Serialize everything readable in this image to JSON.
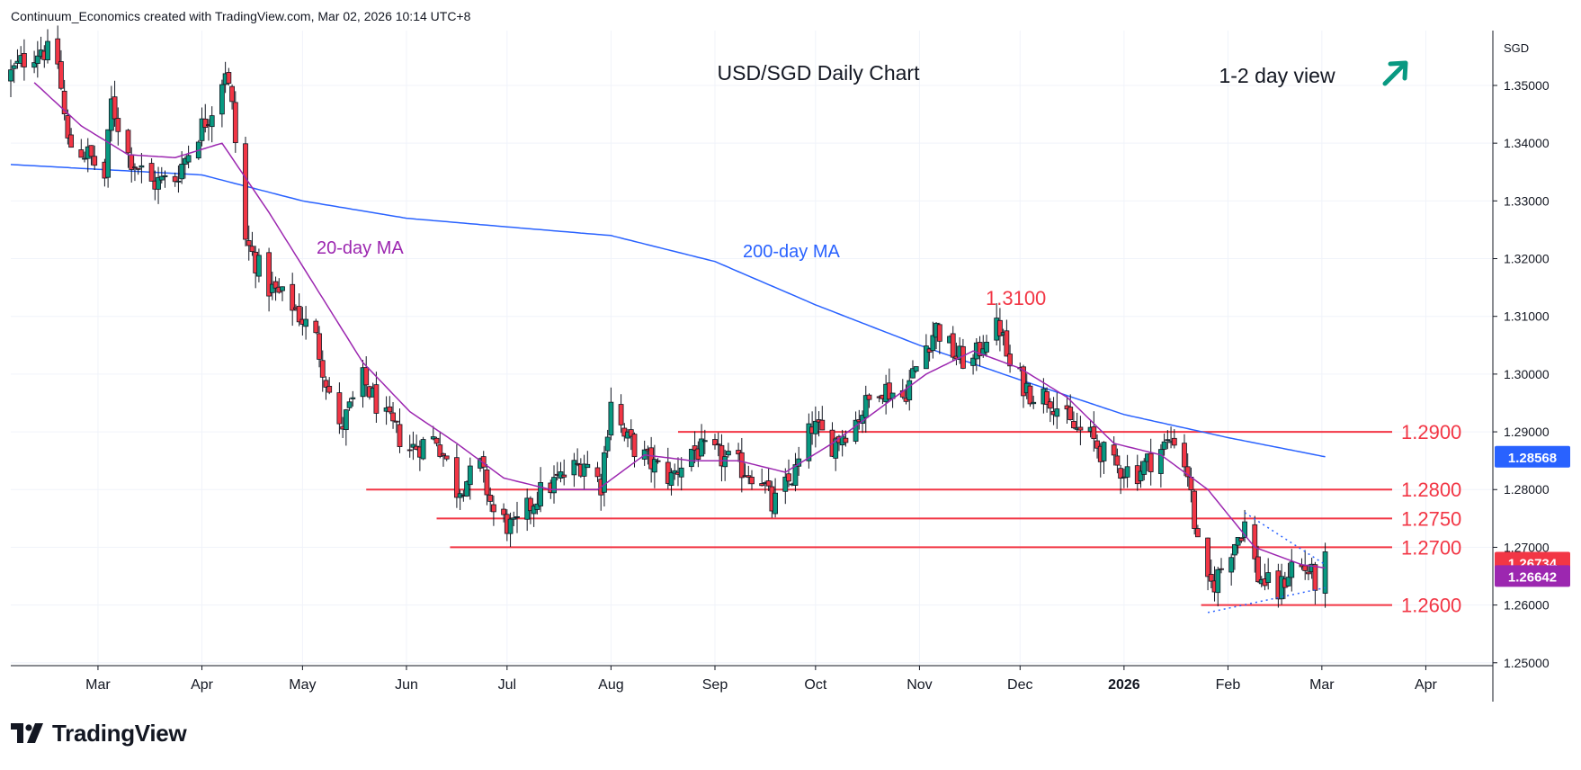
{
  "header": {
    "text": "Continuum_Economics created with TradingView.com, Mar 02, 2026 10:14 UTC+8"
  },
  "brand": {
    "logo_icon": "tradingview-logo-icon",
    "name": "TradingView"
  },
  "colors": {
    "up": "#089981",
    "down": "#f23645",
    "ma20": "#9c27b0",
    "ma200": "#2962ff",
    "level": "#f23645",
    "arrow": "#089981",
    "trend": "#2962ff"
  },
  "chart_data": {
    "type": "candlestick",
    "title": "USD/SGD Daily Chart",
    "view_label": "1-2 day view",
    "view_icon": "arrow-up-right-icon",
    "currency": "SGD",
    "x_ticks": [
      "Mar",
      "Apr",
      "May",
      "Jun",
      "Jul",
      "Aug",
      "Sep",
      "Oct",
      "Nov",
      "Dec",
      "2026",
      "Feb",
      "Mar",
      "Apr"
    ],
    "y_ticks": [
      "1.35000",
      "1.34000",
      "1.33000",
      "1.32000",
      "1.31000",
      "1.30000",
      "1.29000",
      "1.28000",
      "1.27000",
      "1.26000",
      "1.25000"
    ],
    "ylim": [
      1.2495,
      1.3595
    ],
    "last_price": "1.26734",
    "ma20_value": "1.26642",
    "ma200_value": "1.28568",
    "ma20_label": "20-day MA",
    "ma200_label": "200-day MA",
    "peak_label": "1.3100",
    "levels": [
      {
        "label": "1.2900",
        "value": 1.29,
        "from": "2025-08-21"
      },
      {
        "label": "1.2800",
        "value": 1.28,
        "from": "2025-05-20"
      },
      {
        "label": "1.2750",
        "value": 1.275,
        "from": "2025-06-10"
      },
      {
        "label": "1.2700",
        "value": 1.27,
        "from": "2025-06-14"
      },
      {
        "label": "1.2600",
        "value": 1.26,
        "from": "2026-01-24"
      }
    ],
    "x_start": "2025-02-03",
    "x_end": "2026-04-21",
    "ohlc_anchors": [
      [
        "2025-02-03",
        1.352
      ],
      [
        "2025-02-07",
        1.3545
      ],
      [
        "2025-02-12",
        1.3565
      ],
      [
        "2025-02-17",
        1.354
      ],
      [
        "2025-02-20",
        1.34
      ],
      [
        "2025-02-26",
        1.338
      ],
      [
        "2025-03-03",
        1.334
      ],
      [
        "2025-03-05",
        1.347
      ],
      [
        "2025-03-10",
        1.338
      ],
      [
        "2025-03-17",
        1.333
      ],
      [
        "2025-03-24",
        1.334
      ],
      [
        "2025-03-31",
        1.342
      ],
      [
        "2025-04-04",
        1.346
      ],
      [
        "2025-04-08",
        1.353
      ],
      [
        "2025-04-10",
        1.346
      ],
      [
        "2025-04-14",
        1.323
      ],
      [
        "2025-04-21",
        1.315
      ],
      [
        "2025-04-28",
        1.312
      ],
      [
        "2025-05-05",
        1.306
      ],
      [
        "2025-05-12",
        1.29
      ],
      [
        "2025-05-19",
        1.299
      ],
      [
        "2025-05-26",
        1.292
      ],
      [
        "2025-06-02",
        1.287
      ],
      [
        "2025-06-10",
        1.289
      ],
      [
        "2025-06-16",
        1.28
      ],
      [
        "2025-06-23",
        1.284
      ],
      [
        "2025-06-27",
        1.276
      ],
      [
        "2025-07-03",
        1.273
      ],
      [
        "2025-07-10",
        1.279
      ],
      [
        "2025-07-17",
        1.282
      ],
      [
        "2025-07-24",
        1.285
      ],
      [
        "2025-07-29",
        1.281
      ],
      [
        "2025-08-01",
        1.296
      ],
      [
        "2025-08-05",
        1.289
      ],
      [
        "2025-08-12",
        1.285
      ],
      [
        "2025-08-19",
        1.282
      ],
      [
        "2025-08-25",
        1.287
      ],
      [
        "2025-09-01",
        1.286
      ],
      [
        "2025-09-08",
        1.284
      ],
      [
        "2025-09-15",
        1.282
      ],
      [
        "2025-09-18",
        1.277
      ],
      [
        "2025-09-25",
        1.283
      ],
      [
        "2025-09-30",
        1.291
      ],
      [
        "2025-10-06",
        1.288
      ],
      [
        "2025-10-13",
        1.292
      ],
      [
        "2025-10-20",
        1.298
      ],
      [
        "2025-10-27",
        1.296
      ],
      [
        "2025-11-03",
        1.305
      ],
      [
        "2025-11-06",
        1.308
      ],
      [
        "2025-11-12",
        1.303
      ],
      [
        "2025-11-17",
        1.302
      ],
      [
        "2025-11-21",
        1.307
      ],
      [
        "2025-11-25",
        1.308
      ],
      [
        "2025-11-28",
        1.301
      ],
      [
        "2025-12-04",
        1.297
      ],
      [
        "2025-12-10",
        1.296
      ],
      [
        "2025-12-16",
        1.291
      ],
      [
        "2025-12-22",
        1.289
      ],
      [
        "2025-12-29",
        1.284
      ],
      [
        "2026-01-05",
        1.283
      ],
      [
        "2026-01-12",
        1.287
      ],
      [
        "2026-01-16",
        1.289
      ],
      [
        "2026-01-20",
        1.283
      ],
      [
        "2026-01-23",
        1.27
      ],
      [
        "2026-01-26",
        1.263
      ],
      [
        "2026-01-28",
        1.264
      ],
      [
        "2026-02-02",
        1.27
      ],
      [
        "2026-02-06",
        1.274
      ],
      [
        "2026-02-10",
        1.265
      ],
      [
        "2026-02-16",
        1.262
      ],
      [
        "2026-02-20",
        1.267
      ],
      [
        "2026-02-25",
        1.266
      ],
      [
        "2026-02-27",
        1.264
      ],
      [
        "2026-03-02",
        1.2673
      ]
    ],
    "ma200_anchors": [
      [
        "2025-02-03",
        1.3363
      ],
      [
        "2025-04-01",
        1.3345
      ],
      [
        "2025-05-01",
        1.33
      ],
      [
        "2025-06-01",
        1.327
      ],
      [
        "2025-07-01",
        1.3255
      ],
      [
        "2025-08-01",
        1.324
      ],
      [
        "2025-09-01",
        1.3195
      ],
      [
        "2025-10-01",
        1.312
      ],
      [
        "2025-11-01",
        1.305
      ],
      [
        "2025-12-01",
        1.299
      ],
      [
        "2026-01-01",
        1.293
      ],
      [
        "2026-02-01",
        1.289
      ],
      [
        "2026-03-02",
        1.28568
      ]
    ],
    "ma20_anchors": [
      [
        "2025-02-10",
        1.3505
      ],
      [
        "2025-02-24",
        1.343
      ],
      [
        "2025-03-10",
        1.338
      ],
      [
        "2025-03-24",
        1.3375
      ],
      [
        "2025-04-07",
        1.34
      ],
      [
        "2025-04-21",
        1.328
      ],
      [
        "2025-05-05",
        1.315
      ],
      [
        "2025-05-19",
        1.302
      ],
      [
        "2025-06-02",
        1.2935
      ],
      [
        "2025-06-16",
        1.288
      ],
      [
        "2025-06-30",
        1.282
      ],
      [
        "2025-07-14",
        1.28
      ],
      [
        "2025-07-28",
        1.28
      ],
      [
        "2025-08-11",
        1.286
      ],
      [
        "2025-08-25",
        1.285
      ],
      [
        "2025-09-08",
        1.285
      ],
      [
        "2025-09-22",
        1.283
      ],
      [
        "2025-10-06",
        1.288
      ],
      [
        "2025-10-20",
        1.294
      ],
      [
        "2025-11-03",
        1.3
      ],
      [
        "2025-11-17",
        1.304
      ],
      [
        "2025-12-01",
        1.301
      ],
      [
        "2025-12-15",
        1.296
      ],
      [
        "2025-12-29",
        1.288
      ],
      [
        "2026-01-12",
        1.286
      ],
      [
        "2026-01-26",
        1.28
      ],
      [
        "2026-02-09",
        1.27
      ],
      [
        "2026-02-23",
        1.267
      ],
      [
        "2026-03-02",
        1.26642
      ]
    ],
    "trendlines": [
      {
        "from": [
          "2026-01-26",
          1.2587
        ],
        "to": [
          "2026-03-02",
          1.263
        ]
      },
      {
        "from": [
          "2026-02-06",
          1.276
        ],
        "to": [
          "2026-03-02",
          1.267
        ]
      }
    ]
  }
}
